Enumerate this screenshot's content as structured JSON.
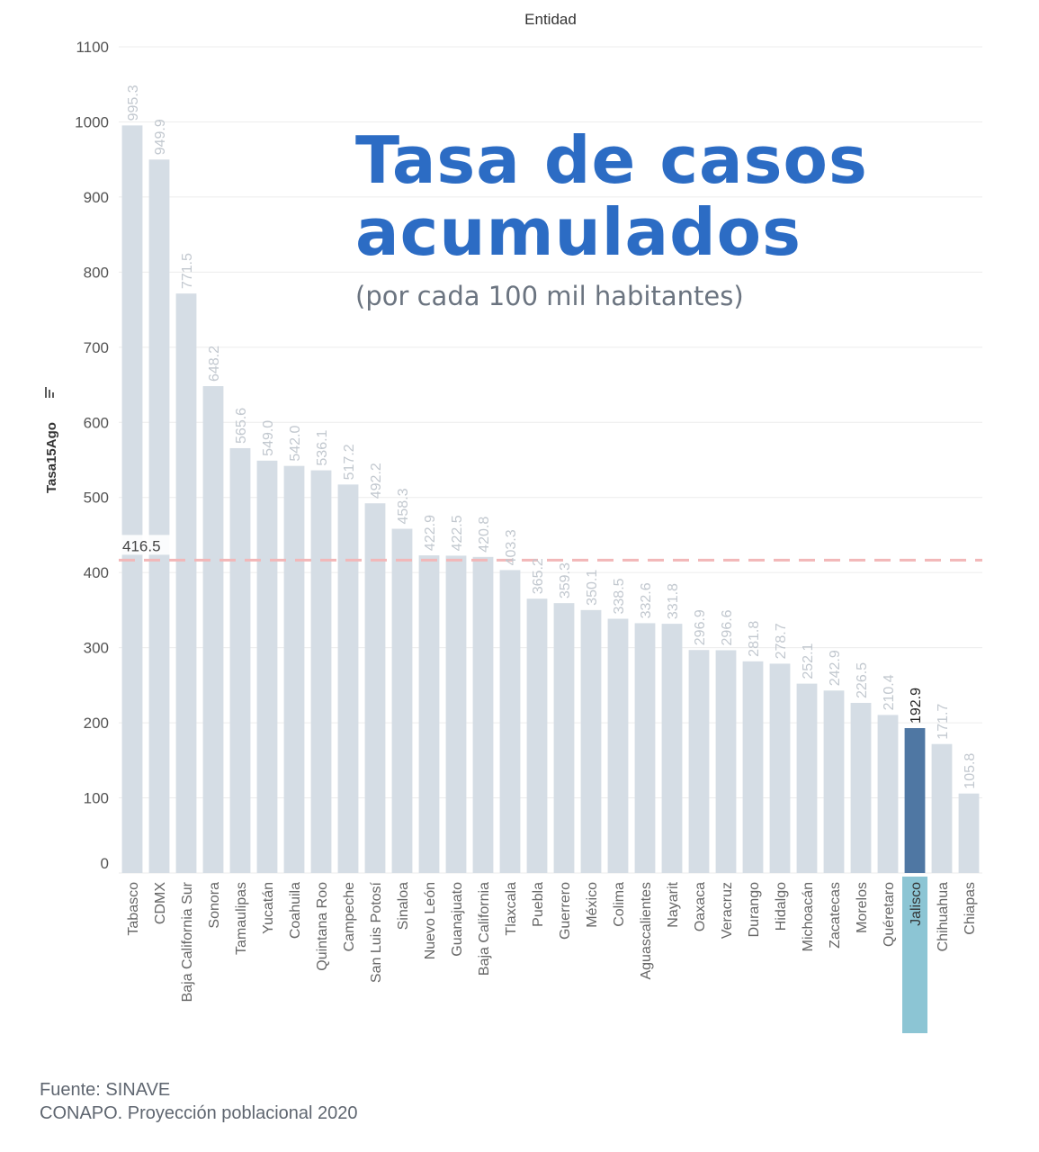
{
  "title_line1": "Tasa de casos",
  "title_line2": "acumulados",
  "subtitle": "(por cada 100 mil habitantes)",
  "source_line1": "Fuente: SINAVE",
  "source_line2": "CONAPO. Proyección poblacional 2020",
  "colors": {
    "bar": "#d5dde5",
    "highlight": "#4f77a3",
    "highlight_label": "#8cc5d4",
    "reference": "#f2b7b8",
    "value_label": "#c2c8cf",
    "title": "#2c6cc4"
  },
  "chart_data": {
    "type": "bar",
    "column_header": "Entidad",
    "ylabel": "Tasa15Ago",
    "ylim": [
      0,
      1100
    ],
    "yticks": [
      0,
      100,
      200,
      300,
      400,
      500,
      600,
      700,
      800,
      900,
      1000,
      1100
    ],
    "grid": true,
    "highlight": "Jalisco",
    "reference_line": {
      "value": 416.5,
      "label": "416.5"
    },
    "categories": [
      "Tabasco",
      "CDMX",
      "Baja California Sur",
      "Sonora",
      "Tamaulipas",
      "Yucatán",
      "Coahuila",
      "Quintana Roo",
      "Campeche",
      "San Luis Potosí",
      "Sinaloa",
      "Nuevo León",
      "Guanajuato",
      "Baja California",
      "Tlaxcala",
      "Puebla",
      "Guerrero",
      "México",
      "Colima",
      "Aguascalientes",
      "Nayarit",
      "Oaxaca",
      "Veracruz",
      "Durango",
      "Hidalgo",
      "Michoacán",
      "Zacatecas",
      "Morelos",
      "Quéretaro",
      "Jalisco",
      "Chihuahua",
      "Chiapas"
    ],
    "values": [
      995.3,
      949.9,
      771.5,
      648.2,
      565.6,
      549.0,
      542.0,
      536.1,
      517.2,
      492.2,
      458.3,
      422.9,
      422.5,
      420.8,
      403.3,
      365.2,
      359.3,
      350.1,
      338.5,
      332.6,
      331.8,
      296.9,
      296.6,
      281.8,
      278.7,
      252.1,
      242.9,
      226.5,
      210.4,
      192.9,
      171.7,
      105.8
    ],
    "labels": [
      "995.3",
      "949.9",
      "771.5",
      "648.2",
      "565.6",
      "549.0",
      "542.0",
      "536.1",
      "517.2",
      "492.2",
      "458.3",
      "422.9",
      "422.5",
      "420.8",
      "403.3",
      "365.2",
      "359.3",
      "350.1",
      "338.5",
      "332.6",
      "331.8",
      "296.9",
      "296.6",
      "281.8",
      "278.7",
      "252.1",
      "242.9",
      "226.5",
      "210.4",
      "192.9",
      "171.7",
      "105.8"
    ]
  }
}
